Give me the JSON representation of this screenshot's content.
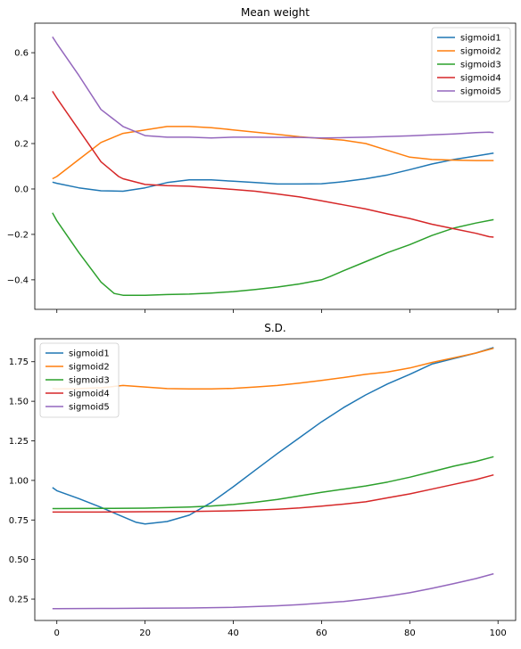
{
  "chart_data": [
    {
      "type": "line",
      "title": "Mean weight",
      "xlabel": "",
      "ylabel": "",
      "xlim": [
        -5,
        104
      ],
      "ylim": [
        -0.53,
        0.73
      ],
      "xticks": [
        0,
        20,
        40,
        60,
        80,
        100
      ],
      "xticks_labeled": false,
      "yticks": [
        -0.4,
        -0.2,
        0.0,
        0.2,
        0.4,
        0.6
      ],
      "ytick_labels": [
        "−0.4",
        "−0.2",
        "0.0",
        "0.2",
        "0.4",
        "0.6"
      ],
      "legend_loc": "upper right",
      "grid": false,
      "series": [
        {
          "name": "sigmoid1",
          "color": "#1f77b4",
          "x": [
            -1,
            0,
            5,
            10,
            15,
            20,
            25,
            30,
            35,
            40,
            45,
            50,
            55,
            60,
            65,
            70,
            75,
            80,
            85,
            90,
            95,
            99
          ],
          "y": [
            0.03,
            0.025,
            0.005,
            -0.008,
            -0.01,
            0.005,
            0.028,
            0.04,
            0.04,
            0.034,
            0.028,
            0.022,
            0.022,
            0.023,
            0.032,
            0.045,
            0.062,
            0.085,
            0.11,
            0.13,
            0.145,
            0.158
          ]
        },
        {
          "name": "sigmoid2",
          "color": "#ff7f0e",
          "x": [
            -1,
            0,
            5,
            10,
            15,
            20,
            25,
            30,
            35,
            40,
            45,
            50,
            55,
            60,
            65,
            70,
            75,
            80,
            85,
            90,
            95,
            99
          ],
          "y": [
            0.045,
            0.055,
            0.13,
            0.205,
            0.245,
            0.26,
            0.275,
            0.275,
            0.27,
            0.26,
            0.25,
            0.24,
            0.23,
            0.222,
            0.215,
            0.2,
            0.17,
            0.14,
            0.13,
            0.127,
            0.125,
            0.125
          ]
        },
        {
          "name": "sigmoid3",
          "color": "#2ca02c",
          "x": [
            -1,
            0,
            5,
            10,
            13,
            15,
            20,
            25,
            30,
            35,
            40,
            45,
            50,
            55,
            60,
            62,
            65,
            70,
            75,
            80,
            85,
            90,
            95,
            99
          ],
          "y": [
            -0.105,
            -0.14,
            -0.28,
            -0.41,
            -0.46,
            -0.468,
            -0.468,
            -0.465,
            -0.463,
            -0.458,
            -0.452,
            -0.443,
            -0.432,
            -0.418,
            -0.4,
            -0.385,
            -0.36,
            -0.32,
            -0.28,
            -0.245,
            -0.205,
            -0.172,
            -0.15,
            -0.135
          ]
        },
        {
          "name": "sigmoid4",
          "color": "#d62728",
          "x": [
            -1,
            0,
            5,
            10,
            14,
            15,
            20,
            25,
            30,
            35,
            40,
            45,
            50,
            55,
            60,
            65,
            70,
            75,
            80,
            85,
            90,
            95,
            98,
            99
          ],
          "y": [
            0.43,
            0.4,
            0.26,
            0.12,
            0.055,
            0.045,
            0.02,
            0.015,
            0.012,
            0.005,
            -0.002,
            -0.01,
            -0.022,
            -0.035,
            -0.052,
            -0.07,
            -0.088,
            -0.11,
            -0.13,
            -0.155,
            -0.175,
            -0.195,
            -0.21,
            -0.212
          ]
        },
        {
          "name": "sigmoid5",
          "color": "#9467bd",
          "x": [
            -1,
            0,
            5,
            10,
            15,
            20,
            25,
            30,
            35,
            40,
            45,
            50,
            55,
            60,
            65,
            70,
            75,
            80,
            85,
            90,
            95,
            98,
            99
          ],
          "y": [
            0.67,
            0.64,
            0.5,
            0.35,
            0.275,
            0.235,
            0.228,
            0.228,
            0.225,
            0.228,
            0.228,
            0.227,
            0.227,
            0.225,
            0.226,
            0.228,
            0.231,
            0.234,
            0.238,
            0.242,
            0.248,
            0.25,
            0.248
          ]
        }
      ]
    },
    {
      "type": "line",
      "title": "S.D.",
      "xlabel": "",
      "ylabel": "",
      "xlim": [
        -5,
        104
      ],
      "ylim": [
        0.115,
        1.895
      ],
      "xticks": [
        0,
        20,
        40,
        60,
        80,
        100
      ],
      "xtick_labels": [
        "0",
        "20",
        "40",
        "60",
        "80",
        "100"
      ],
      "yticks": [
        0.25,
        0.5,
        0.75,
        1.0,
        1.25,
        1.5,
        1.75
      ],
      "ytick_labels": [
        "0.25",
        "0.50",
        "0.75",
        "1.00",
        "1.25",
        "1.50",
        "1.75"
      ],
      "legend_loc": "upper left",
      "grid": false,
      "series": [
        {
          "name": "sigmoid1",
          "color": "#1f77b4",
          "x": [
            -1,
            0,
            5,
            10,
            15,
            18,
            20,
            25,
            30,
            35,
            40,
            45,
            50,
            55,
            60,
            65,
            70,
            75,
            80,
            85,
            90,
            95,
            99
          ],
          "y": [
            0.955,
            0.935,
            0.885,
            0.83,
            0.77,
            0.735,
            0.725,
            0.74,
            0.78,
            0.86,
            0.96,
            1.065,
            1.17,
            1.27,
            1.37,
            1.46,
            1.54,
            1.61,
            1.67,
            1.735,
            1.77,
            1.805,
            1.84
          ]
        },
        {
          "name": "sigmoid2",
          "color": "#ff7f0e",
          "x": [
            -1,
            0,
            5,
            10,
            15,
            20,
            25,
            30,
            35,
            40,
            45,
            50,
            55,
            60,
            65,
            70,
            75,
            80,
            85,
            90,
            95,
            99
          ],
          "y": [
            1.58,
            1.578,
            1.58,
            1.585,
            1.6,
            1.59,
            1.58,
            1.578,
            1.578,
            1.582,
            1.59,
            1.6,
            1.615,
            1.632,
            1.65,
            1.67,
            1.685,
            1.71,
            1.745,
            1.775,
            1.805,
            1.835
          ]
        },
        {
          "name": "sigmoid3",
          "color": "#2ca02c",
          "x": [
            -1,
            0,
            10,
            20,
            30,
            35,
            40,
            45,
            50,
            55,
            60,
            65,
            70,
            75,
            80,
            85,
            90,
            95,
            99
          ],
          "y": [
            0.822,
            0.822,
            0.823,
            0.825,
            0.832,
            0.838,
            0.848,
            0.862,
            0.88,
            0.902,
            0.925,
            0.945,
            0.965,
            0.99,
            1.02,
            1.055,
            1.09,
            1.12,
            1.15
          ]
        },
        {
          "name": "sigmoid4",
          "color": "#d62728",
          "x": [
            -1,
            0,
            10,
            20,
            30,
            40,
            45,
            50,
            55,
            60,
            65,
            70,
            75,
            80,
            85,
            90,
            95,
            99
          ],
          "y": [
            0.8,
            0.8,
            0.8,
            0.802,
            0.804,
            0.808,
            0.812,
            0.818,
            0.826,
            0.837,
            0.85,
            0.865,
            0.89,
            0.915,
            0.945,
            0.975,
            1.005,
            1.035
          ]
        },
        {
          "name": "sigmoid5",
          "color": "#9467bd",
          "x": [
            -1,
            0,
            10,
            20,
            30,
            40,
            45,
            50,
            55,
            60,
            65,
            70,
            75,
            80,
            85,
            90,
            95,
            99
          ],
          "y": [
            0.19,
            0.19,
            0.191,
            0.192,
            0.194,
            0.198,
            0.203,
            0.208,
            0.215,
            0.225,
            0.235,
            0.25,
            0.268,
            0.29,
            0.318,
            0.348,
            0.38,
            0.41
          ]
        }
      ]
    }
  ]
}
